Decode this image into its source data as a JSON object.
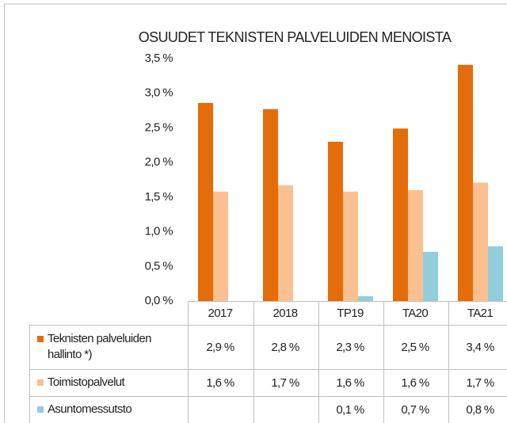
{
  "chart_data": {
    "type": "bar",
    "title": "OSUUDET TEKNISTEN PALVELUIDEN MENOISTA",
    "categories": [
      "2017",
      "2018",
      "TP19",
      "TA20",
      "TA21"
    ],
    "series": [
      {
        "name": "Teknisten palveluiden hallinto *)",
        "color": "#e46c0a",
        "values": [
          2.86,
          2.77,
          2.3,
          2.49,
          3.41
        ],
        "value_labels": [
          "2,9 %",
          "2,8 %",
          "2,3 %",
          "2,5 %",
          "3,4 %"
        ]
      },
      {
        "name": "Toimistopalvelut",
        "color": "#fac090",
        "values": [
          1.58,
          1.67,
          1.58,
          1.6,
          1.71
        ],
        "value_labels": [
          "1,6 %",
          "1,7 %",
          "1,6 %",
          "1,6 %",
          "1,7 %"
        ]
      },
      {
        "name": "Asuntomessutsto",
        "color": "#92cddc",
        "values": [
          null,
          null,
          0.07,
          0.71,
          0.79
        ],
        "value_labels": [
          null,
          null,
          "0,1 %",
          "0,7 %",
          "0,8 %"
        ]
      }
    ],
    "ylim": [
      0,
      3.5
    ],
    "yticks": [
      {
        "value": 0,
        "label": "0,0 %"
      },
      {
        "value": 0.5,
        "label": "0,5 %"
      },
      {
        "value": 1,
        "label": "1,0 %"
      },
      {
        "value": 1.5,
        "label": "1,5 %"
      },
      {
        "value": 2,
        "label": "2,0 %"
      },
      {
        "value": 2.5,
        "label": "2,5 %"
      },
      {
        "value": 3,
        "label": "3,0 %"
      },
      {
        "value": 3.5,
        "label": "3,5 %"
      }
    ],
    "grid": false
  }
}
